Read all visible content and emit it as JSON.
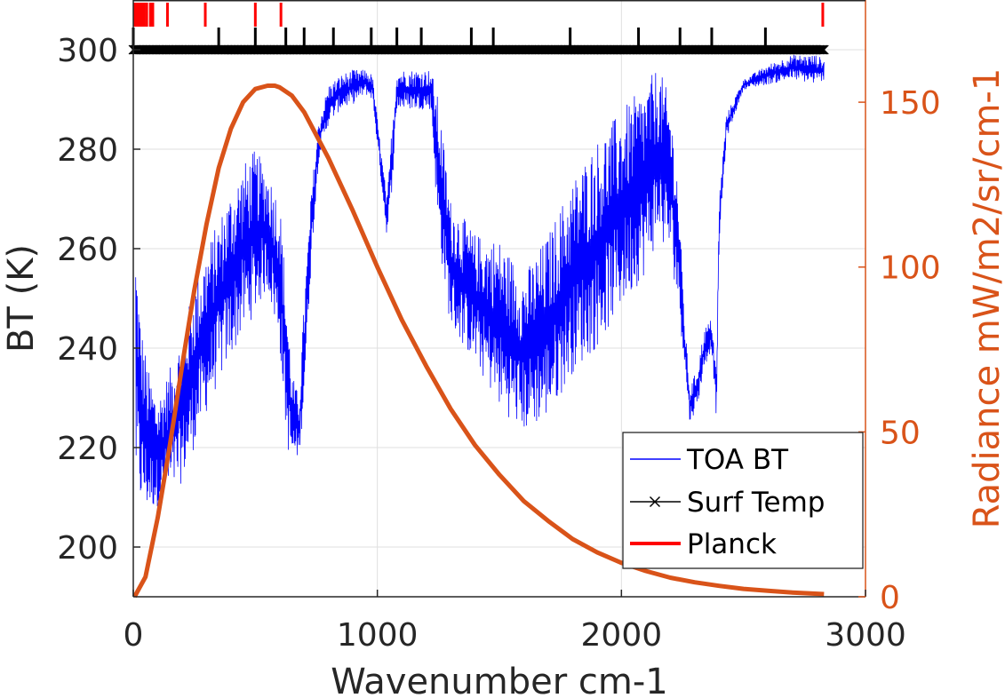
{
  "chart_data": {
    "type": "line",
    "xlabel": "Wavenumber cm-1",
    "ylabel_left": "BT (K)",
    "ylabel_right": "Radiance mW/m2/sr/cm-1",
    "xlim": [
      0,
      3000
    ],
    "ylim_left": [
      190,
      310
    ],
    "ylim_right": [
      0,
      181
    ],
    "xticks": [
      0,
      1000,
      2000,
      3000
    ],
    "xtick_labels": [
      "0",
      "1000",
      "2000",
      "3000"
    ],
    "yticks_left": [
      200,
      220,
      240,
      260,
      280,
      300
    ],
    "ytick_labels_left": [
      "200",
      "220",
      "240",
      "260",
      "280",
      "300"
    ],
    "yticks_right": [
      0,
      50,
      100,
      150
    ],
    "ytick_labels_right": [
      "0",
      "50",
      "100",
      "150"
    ],
    "grid": true,
    "legend_position": "bottom-right",
    "colors": {
      "toa": "#0000FF",
      "surf": "#000000",
      "planck_legend": "#FF0000",
      "radiance": "#D95319",
      "axis": "#262626",
      "grid": "#DFDFDF"
    },
    "series": [
      {
        "name": "TOA BT",
        "axis": "left",
        "envelope": [
          [
            10,
            212,
            262
          ],
          [
            30,
            208,
            246
          ],
          [
            60,
            207,
            236
          ],
          [
            100,
            208,
            230
          ],
          [
            150,
            210,
            236
          ],
          [
            200,
            213,
            243
          ],
          [
            250,
            220,
            253
          ],
          [
            300,
            227,
            260
          ],
          [
            350,
            233,
            266
          ],
          [
            400,
            238,
            272
          ],
          [
            450,
            243,
            277
          ],
          [
            500,
            247,
            280
          ],
          [
            550,
            252,
            276
          ],
          [
            600,
            240,
            270
          ],
          [
            630,
            220,
            250
          ],
          [
            650,
            217,
            235
          ],
          [
            680,
            218,
            230
          ],
          [
            700,
            230,
            250
          ],
          [
            730,
            258,
            272
          ],
          [
            760,
            278,
            286
          ],
          [
            800,
            285,
            293
          ],
          [
            850,
            288,
            295
          ],
          [
            900,
            289,
            296
          ],
          [
            950,
            291,
            296
          ],
          [
            980,
            290,
            295
          ],
          [
            1010,
            276,
            282
          ],
          [
            1040,
            262,
            270
          ],
          [
            1060,
            272,
            285
          ],
          [
            1080,
            288,
            296
          ],
          [
            1150,
            288,
            296
          ],
          [
            1220,
            288,
            296
          ],
          [
            1250,
            262,
            290
          ],
          [
            1300,
            244,
            270
          ],
          [
            1400,
            237,
            263
          ],
          [
            1500,
            228,
            262
          ],
          [
            1600,
            223,
            255
          ],
          [
            1700,
            226,
            263
          ],
          [
            1800,
            235,
            274
          ],
          [
            1900,
            240,
            282
          ],
          [
            2000,
            248,
            288
          ],
          [
            2100,
            255,
            293
          ],
          [
            2150,
            262,
            297
          ],
          [
            2200,
            258,
            290
          ],
          [
            2230,
            250,
            275
          ],
          [
            2260,
            236,
            245
          ],
          [
            2280,
            225,
            232
          ],
          [
            2310,
            228,
            236
          ],
          [
            2340,
            236,
            244
          ],
          [
            2370,
            240,
            246
          ],
          [
            2390,
            225,
            235
          ],
          [
            2400,
            260,
            270
          ],
          [
            2430,
            282,
            287
          ],
          [
            2500,
            292,
            294
          ],
          [
            2600,
            293,
            297
          ],
          [
            2700,
            294,
            299
          ],
          [
            2800,
            293,
            299
          ],
          [
            2830,
            294,
            298
          ]
        ]
      },
      {
        "name": "Surf Temp",
        "axis": "left",
        "value": 300,
        "x_range": [
          0,
          2830
        ]
      },
      {
        "name": "Planck",
        "axis": "right",
        "note": "legend entry"
      }
    ],
    "radiance_curve": {
      "axis": "right",
      "x": [
        5,
        50,
        100,
        150,
        200,
        250,
        300,
        350,
        400,
        450,
        500,
        550,
        580,
        600,
        650,
        700,
        750,
        800,
        900,
        1000,
        1100,
        1200,
        1300,
        1400,
        1500,
        1600,
        1700,
        1800,
        1900,
        2000,
        2100,
        2200,
        2300,
        2400,
        2500,
        2600,
        2700,
        2830
      ],
      "y": [
        0,
        6,
        24,
        46,
        70,
        93,
        113,
        130,
        142,
        150,
        154,
        155,
        155,
        154.5,
        152,
        147,
        140,
        133,
        117,
        100,
        84,
        70,
        57,
        46,
        37,
        29,
        23,
        17.5,
        13.5,
        10.3,
        7.8,
        5.8,
        4.4,
        3.3,
        2.4,
        1.8,
        1.3,
        0.8
      ]
    },
    "black_markers_x": [
      0,
      350,
      500,
      625,
      700,
      820,
      975,
      1080,
      1180,
      1385,
      1475,
      1790,
      2070,
      2240,
      2370,
      2590
    ],
    "red_markers_x": [
      5,
      10,
      15,
      20,
      25,
      30,
      35,
      40,
      45,
      55,
      70,
      80,
      140,
      295,
      500,
      605,
      2825
    ]
  }
}
